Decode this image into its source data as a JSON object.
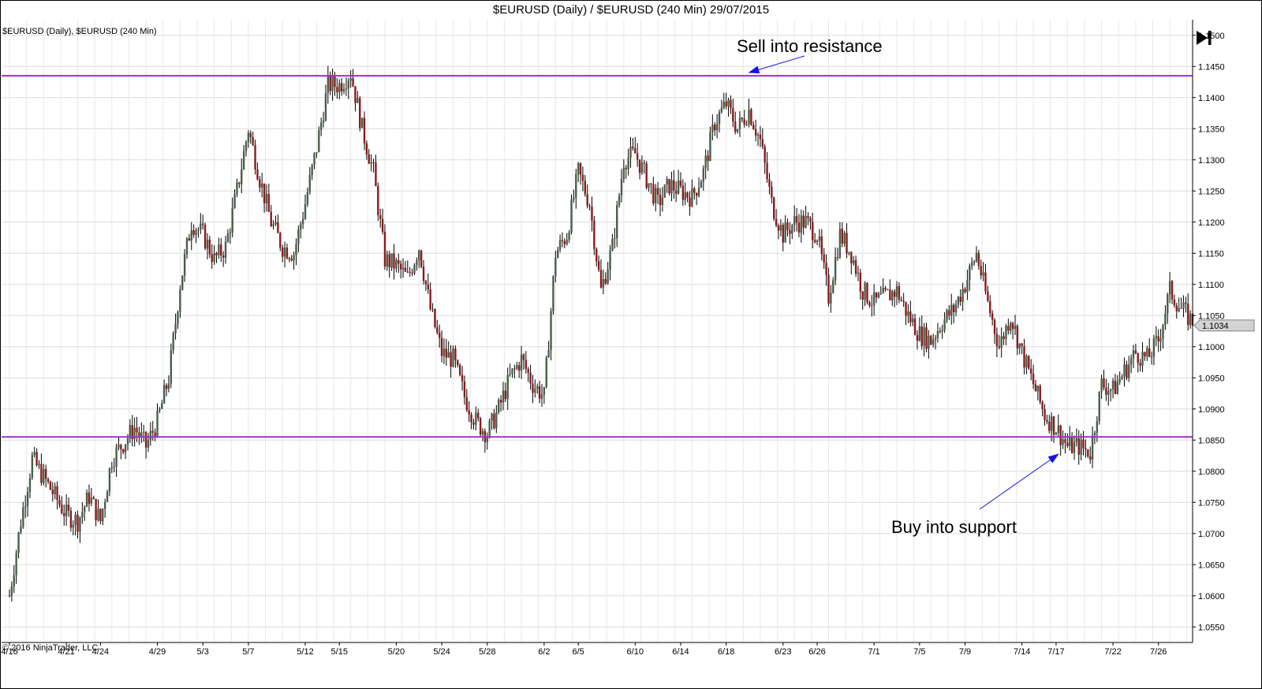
{
  "title": "$EURUSD (Daily) / $EURUSD (240 Min)  29/07/2015",
  "series_label": "$EURUSD (Daily), $EURUSD (240 Min)",
  "copyright": "© 2016 NinjaTrader, LLC",
  "last_price_badge": "1.1034",
  "colors": {
    "up_candle": "#4a5e4a",
    "down_candle": "#8b1a1a",
    "wick": "#000000",
    "level_line": "#9933cc",
    "arrow": "#1414e6",
    "grid": "#dcdcdc",
    "badge_fill": "#d3d3d3"
  },
  "icons": {
    "skip_to_end": "skip-to-end-icon"
  },
  "chart_data": {
    "type": "candlestick",
    "title": "$EURUSD (Daily) / $EURUSD (240 Min)  29/07/2015",
    "series": [
      {
        "name": "$EURUSD (Daily), $EURUSD (240 Min)"
      }
    ],
    "ylim": [
      1.0525,
      1.1525
    ],
    "y_ticks": [
      "1.0550",
      "1.0600",
      "1.0650",
      "1.0700",
      "1.0750",
      "1.0800",
      "1.0850",
      "1.0900",
      "1.0950",
      "1.1000",
      "1.1050",
      "1.1100",
      "1.1150",
      "1.1200",
      "1.1250",
      "1.1300",
      "1.1350",
      "1.1400",
      "1.1450",
      "1.1500"
    ],
    "x_ticks": [
      "4/16",
      "4/21",
      "4/24",
      "4/29",
      "5/3",
      "5/7",
      "5/12",
      "5/15",
      "5/20",
      "5/24",
      "5/28",
      "6/2",
      "6/5",
      "6/10",
      "6/14",
      "6/18",
      "6/23",
      "6/26",
      "7/1",
      "7/5",
      "7/9",
      "7/14",
      "7/17",
      "7/22",
      "7/26"
    ],
    "anchors": [
      [
        "4/16",
        1.06
      ],
      [
        "4/17",
        1.072
      ],
      [
        "4/18",
        1.082
      ],
      [
        "4/20",
        1.076
      ],
      [
        "4/21",
        1.073
      ],
      [
        "4/22",
        1.072
      ],
      [
        "4/23",
        1.076
      ],
      [
        "4/24",
        1.072
      ],
      [
        "4/25",
        1.082
      ],
      [
        "4/27",
        1.087
      ],
      [
        "4/28",
        1.084
      ],
      [
        "4/29",
        1.088
      ],
      [
        "4/30",
        1.095
      ],
      [
        "5/1",
        1.11
      ],
      [
        "5/2",
        1.12
      ],
      [
        "5/3",
        1.118
      ],
      [
        "5/4",
        1.114
      ],
      [
        "5/5",
        1.116
      ],
      [
        "5/6",
        1.125
      ],
      [
        "5/7",
        1.135
      ],
      [
        "5/8",
        1.127
      ],
      [
        "5/9",
        1.12
      ],
      [
        "5/10",
        1.116
      ],
      [
        "5/11",
        1.115
      ],
      [
        "5/12",
        1.123
      ],
      [
        "5/13",
        1.132
      ],
      [
        "5/14",
        1.142
      ],
      [
        "5/15",
        1.142
      ],
      [
        "5/16",
        1.144
      ],
      [
        "5/17",
        1.135
      ],
      [
        "5/18",
        1.128
      ],
      [
        "5/19",
        1.114
      ],
      [
        "5/20",
        1.113
      ],
      [
        "5/21",
        1.111
      ],
      [
        "5/22",
        1.116
      ],
      [
        "5/23",
        1.106
      ],
      [
        "5/24",
        1.099
      ],
      [
        "5/25",
        1.098
      ],
      [
        "5/26",
        1.092
      ],
      [
        "5/27",
        1.088
      ],
      [
        "5/28",
        1.086
      ],
      [
        "5/29",
        1.09
      ],
      [
        "5/30",
        1.095
      ],
      [
        "5/31",
        1.098
      ],
      [
        "6/1",
        1.094
      ],
      [
        "6/2",
        1.092
      ],
      [
        "6/3",
        1.115
      ],
      [
        "6/4",
        1.118
      ],
      [
        "6/5",
        1.128
      ],
      [
        "6/6",
        1.123
      ],
      [
        "6/7",
        1.109
      ],
      [
        "6/8",
        1.116
      ],
      [
        "6/9",
        1.13
      ],
      [
        "6/10",
        1.131
      ],
      [
        "6/11",
        1.127
      ],
      [
        "6/12",
        1.123
      ],
      [
        "6/13",
        1.126
      ],
      [
        "6/14",
        1.125
      ],
      [
        "6/15",
        1.124
      ],
      [
        "6/16",
        1.128
      ],
      [
        "6/17",
        1.136
      ],
      [
        "6/18",
        1.139
      ],
      [
        "6/19",
        1.135
      ],
      [
        "6/20",
        1.138
      ],
      [
        "6/21",
        1.133
      ],
      [
        "6/22",
        1.123
      ],
      [
        "6/23",
        1.118
      ],
      [
        "6/24",
        1.12
      ],
      [
        "6/25",
        1.12
      ],
      [
        "6/26",
        1.118
      ],
      [
        "6/27",
        1.108
      ],
      [
        "6/28",
        1.118
      ],
      [
        "6/29",
        1.115
      ],
      [
        "6/30",
        1.109
      ],
      [
        "7/1",
        1.107
      ],
      [
        "7/2",
        1.108
      ],
      [
        "7/3",
        1.109
      ],
      [
        "7/4",
        1.105
      ],
      [
        "7/5",
        1.102
      ],
      [
        "7/6",
        1.101
      ],
      [
        "7/7",
        1.104
      ],
      [
        "7/8",
        1.106
      ],
      [
        "7/9",
        1.11
      ],
      [
        "7/10",
        1.115
      ],
      [
        "7/11",
        1.107
      ],
      [
        "7/12",
        1.1
      ],
      [
        "7/13",
        1.105
      ],
      [
        "7/14",
        1.099
      ],
      [
        "7/15",
        1.094
      ],
      [
        "7/16",
        1.089
      ],
      [
        "7/17",
        1.087
      ],
      [
        "7/18",
        1.084
      ],
      [
        "7/19",
        1.084
      ],
      [
        "7/20",
        1.083
      ],
      [
        "7/21",
        1.094
      ],
      [
        "7/22",
        1.093
      ],
      [
        "7/23",
        1.096
      ],
      [
        "7/24",
        1.099
      ],
      [
        "7/25",
        1.098
      ],
      [
        "7/26",
        1.101
      ],
      [
        "7/27",
        1.109
      ],
      [
        "7/28",
        1.106
      ],
      [
        "7/29",
        1.104
      ]
    ],
    "levels": [
      {
        "label": "resistance",
        "price": 1.1435
      },
      {
        "label": "support",
        "price": 1.0855
      }
    ],
    "annotations": [
      {
        "text": "Sell into resistance",
        "arrow_to_date": "6/20",
        "arrow_to_price": 1.144
      },
      {
        "text": "Buy into support",
        "arrow_to_date": "7/18",
        "arrow_to_price": 1.0825
      }
    ],
    "last_price": 1.1034,
    "grid": true,
    "y_axis_side": "right"
  }
}
